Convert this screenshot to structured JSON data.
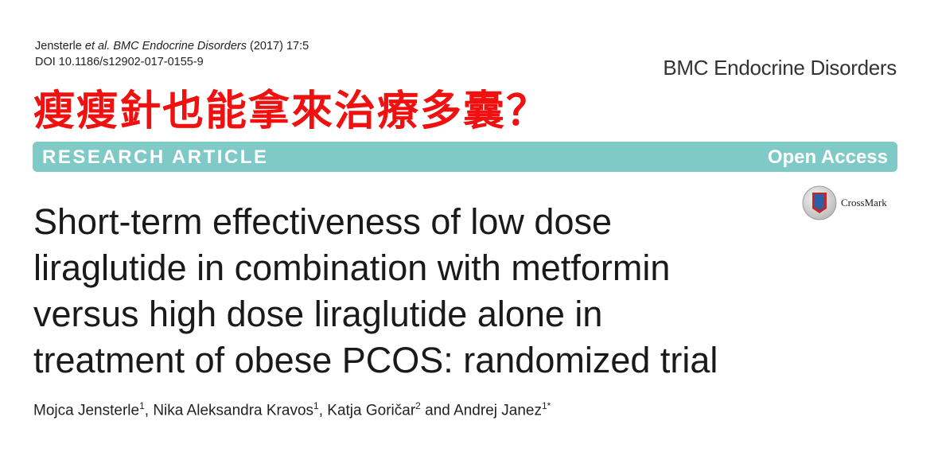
{
  "citation": {
    "authors_short": "Jensterle",
    "et_al": "et al.",
    "journal_italic": "BMC Endocrine Disorders",
    "year_vol": "(2017) 17:5",
    "doi": "DOI 10.1186/s12902-017-0155-9"
  },
  "journal_name": "BMC Endocrine Disorders",
  "overlay_title": "瘦瘦針也能拿來治療多囊？",
  "banner": {
    "left_label": "RESEARCH ARTICLE",
    "right_label": "Open Access"
  },
  "crossmark_label": "CrossMark",
  "article_title_lines": [
    "Short-term effectiveness of low dose",
    "liraglutide in combination with metformin",
    "versus high dose liraglutide alone in",
    "treatment of obese PCOS: randomized trial"
  ],
  "authors": [
    {
      "name": "Mojca Jensterle",
      "sup": "1",
      "sep": ", "
    },
    {
      "name": "Nika Aleksandra Kravos",
      "sup": "1",
      "sep": ", "
    },
    {
      "name": "Katja Goričar",
      "sup": "2",
      "sep": " and "
    },
    {
      "name": "Andrej Janez",
      "sup": "1*",
      "sep": ""
    }
  ],
  "colors": {
    "banner": "#7fcac6",
    "overlay_title": "#f01010",
    "crossmark_red": "#c0282a"
  },
  "icons": [
    "crossmark-icon"
  ]
}
